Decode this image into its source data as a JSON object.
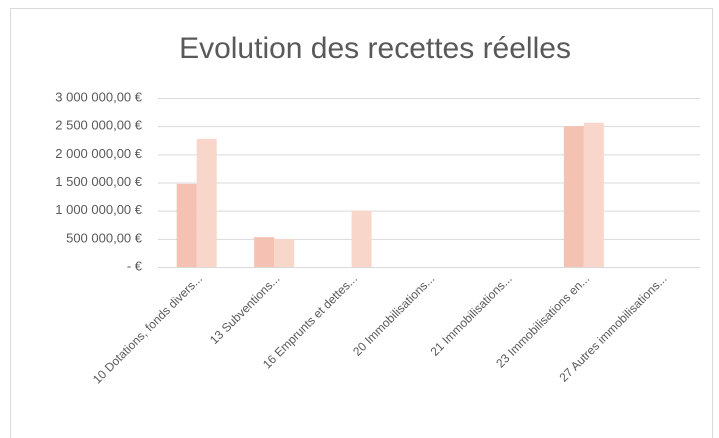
{
  "chart_data": {
    "type": "bar",
    "title": "Evolution des recettes réelles",
    "categories": [
      "10 Dotations, fonds divers...",
      "13 Subventions...",
      "16 Emprunts et dettes...",
      "20 Immobilisations...",
      "21 Immobilisations...",
      "23 Immobilisations en...",
      "27 Autres immobilisations..."
    ],
    "series": [
      {
        "color": "#f4c1b2",
        "values": [
          1475000,
          530000,
          0,
          0,
          0,
          2500000,
          0
        ]
      },
      {
        "color": "#f8d6ca",
        "values": [
          2275000,
          495000,
          1000000,
          0,
          0,
          2560000,
          0
        ]
      }
    ],
    "ylim": [
      0,
      3000000
    ],
    "yticks": [
      {
        "value": 0,
        "label": "-  €"
      },
      {
        "value": 500000,
        "label": "500 000,00 €"
      },
      {
        "value": 1000000,
        "label": "1 000 000,00 €"
      },
      {
        "value": 1500000,
        "label": "1 500 000,00 €"
      },
      {
        "value": 2000000,
        "label": "2 000 000,00 €"
      },
      {
        "value": 2500000,
        "label": "2 500 000,00 €"
      },
      {
        "value": 3000000,
        "label": "3 000 000,00 €"
      }
    ],
    "grid": true
  }
}
